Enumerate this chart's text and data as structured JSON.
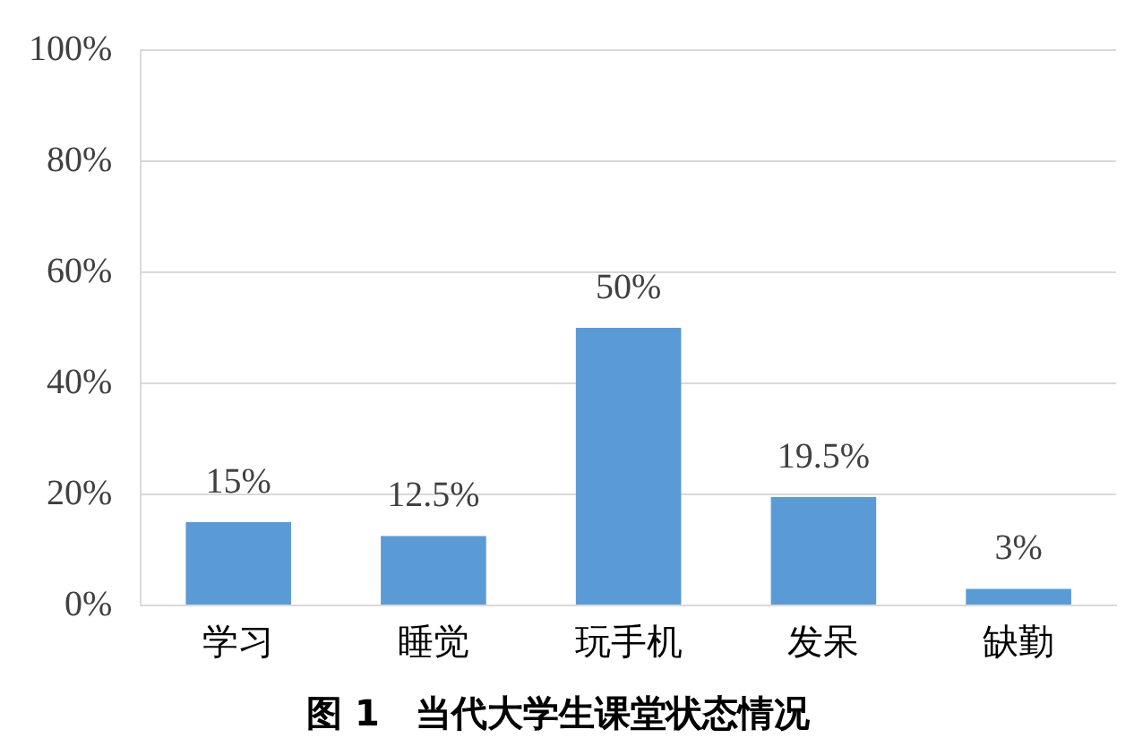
{
  "chart_data": {
    "type": "bar",
    "title": "图 1　当代大学生课堂状态情况",
    "categories": [
      "学习",
      "睡觉",
      "玩手机",
      "发呆",
      "缺勤"
    ],
    "values": [
      15,
      12.5,
      50,
      19.5,
      3
    ],
    "value_labels": [
      "15%",
      "12.5%",
      "50%",
      "19.5%",
      "3%"
    ],
    "color": "#5b9bd5",
    "ylim": [
      0,
      100
    ],
    "yticks": [
      {
        "value": 0,
        "label": "0%"
      },
      {
        "value": 20,
        "label": "20%"
      },
      {
        "value": 40,
        "label": "40%"
      },
      {
        "value": 60,
        "label": "60%"
      },
      {
        "value": 80,
        "label": "80%"
      },
      {
        "value": 100,
        "label": "100%"
      }
    ],
    "grid": "y",
    "legend": false
  }
}
